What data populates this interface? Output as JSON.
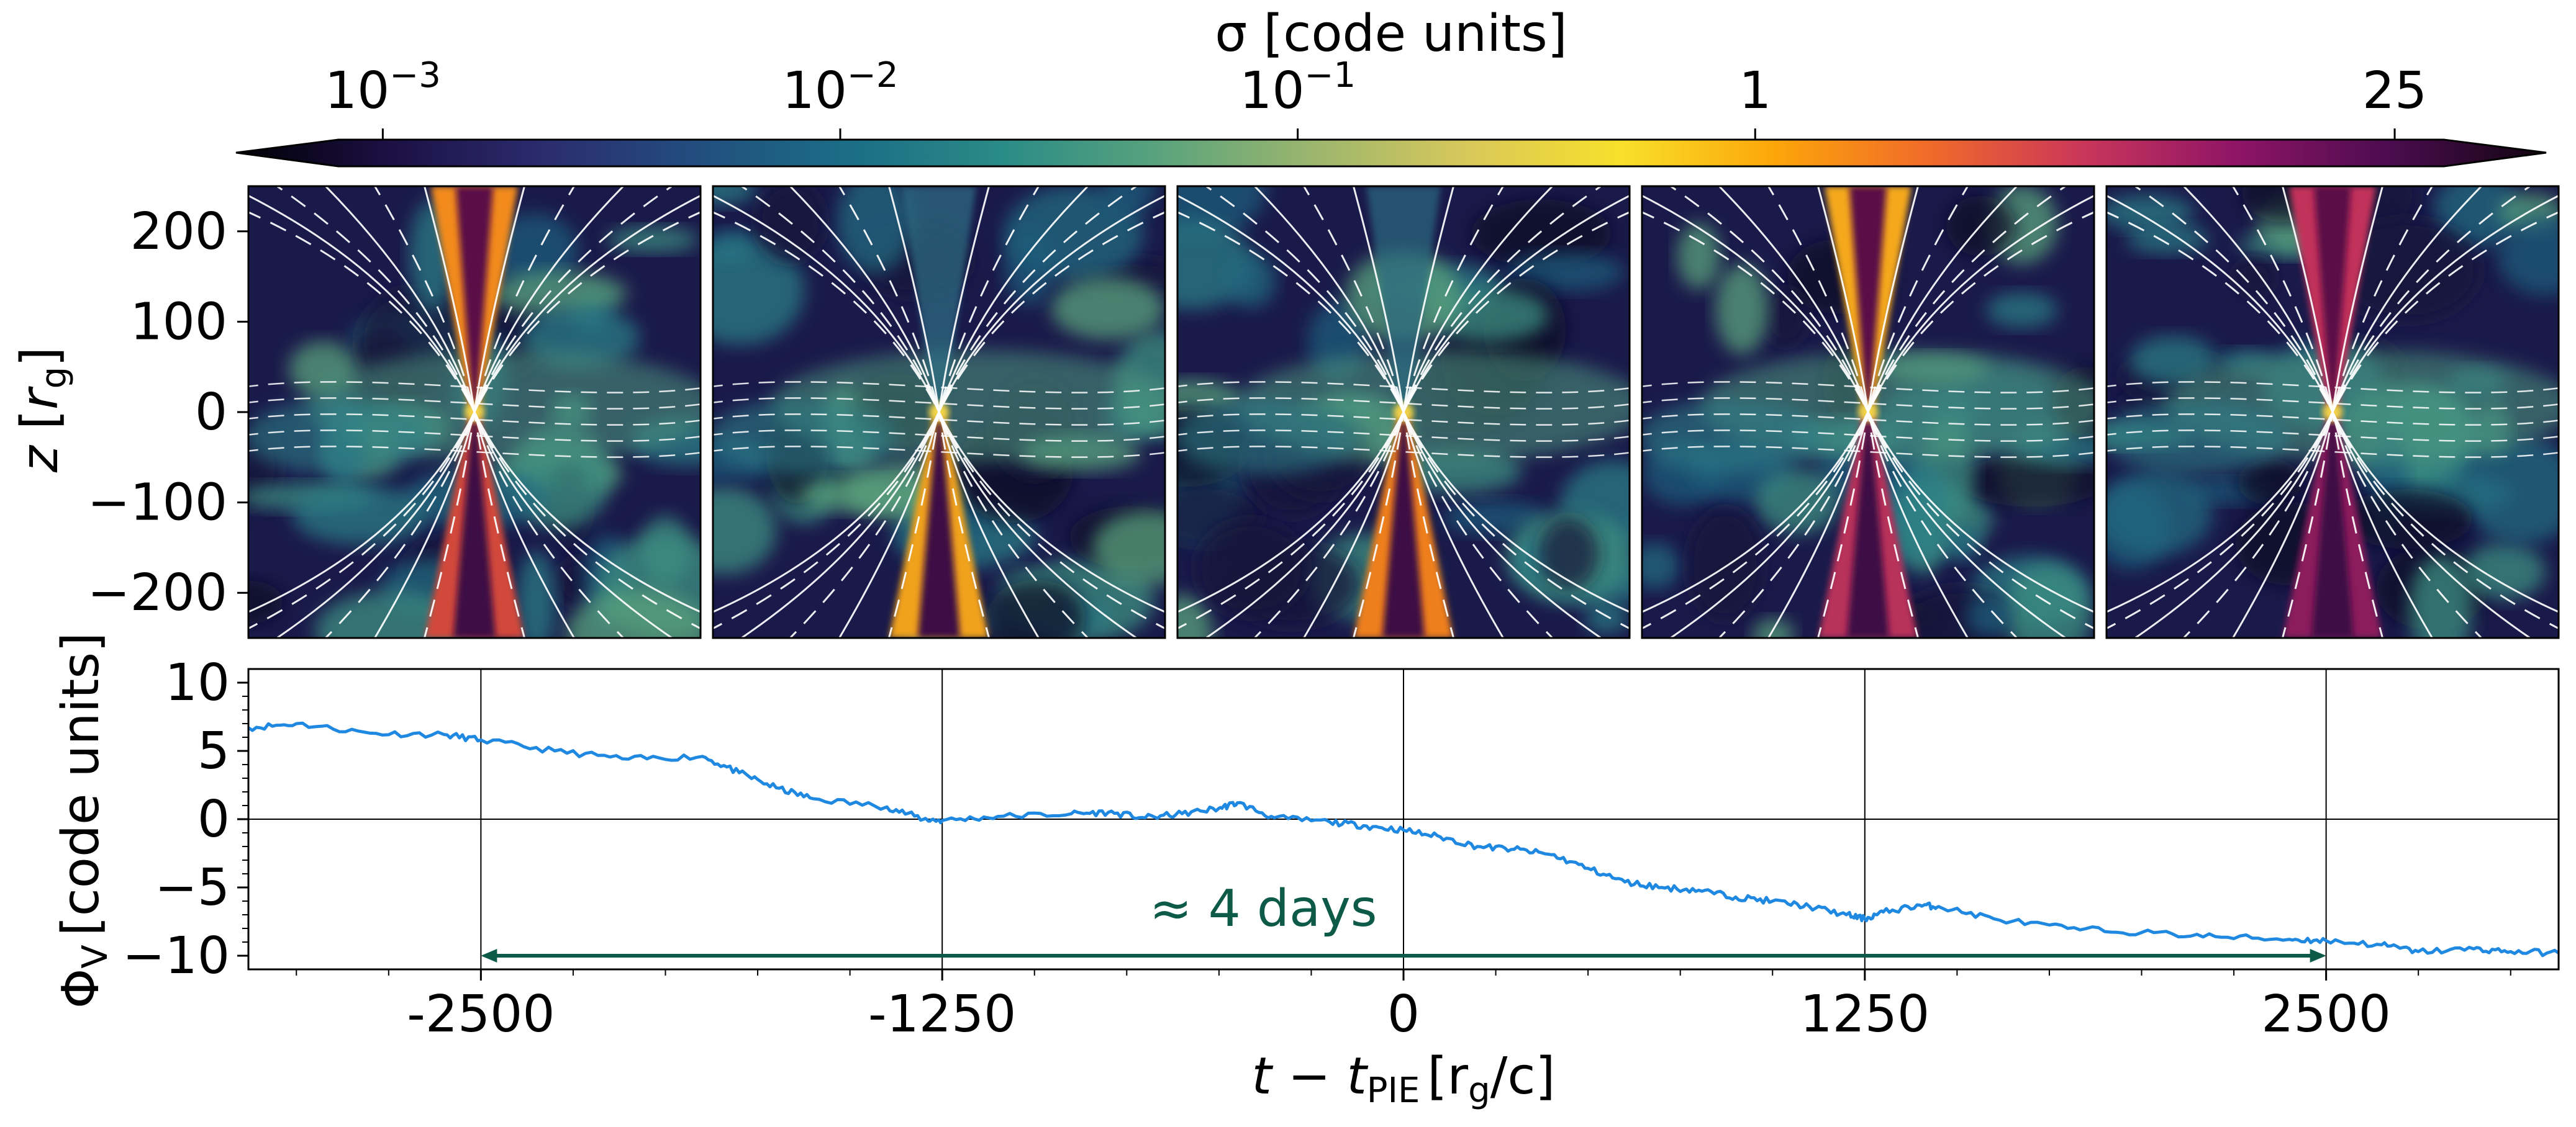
{
  "colorbar": {
    "label": "σ [code units]",
    "scale": "log",
    "ticks": [
      {
        "value": 0.001,
        "base": "10",
        "exp": "−3"
      },
      {
        "value": 0.01,
        "base": "10",
        "exp": "−2"
      },
      {
        "value": 0.1,
        "base": "10",
        "exp": "−1"
      },
      {
        "value": 1,
        "label": "1"
      },
      {
        "value": 25,
        "label": "25"
      }
    ],
    "range": [
      0.0008,
      32
    ],
    "colormap": [
      "#000004",
      "#1c1044",
      "#2b2c6e",
      "#224e7e",
      "#1b6e86",
      "#2b8c86",
      "#5aa37d",
      "#9cb66e",
      "#d8c85a",
      "#f8e02a",
      "#fca50a",
      "#f06a2a",
      "#c9365a",
      "#8e1466",
      "#4a0c4e",
      "#10040f"
    ],
    "extend": "both"
  },
  "snapshots": {
    "ylabel_main": "z",
    "ylabel_var": "r",
    "ylabel_sub": "g",
    "yticks": [
      {
        "value": 200,
        "label": "200"
      },
      {
        "value": 100,
        "label": "100"
      },
      {
        "value": 0,
        "label": "0"
      },
      {
        "value": -100,
        "label": "−100"
      },
      {
        "value": -200,
        "label": "−200"
      }
    ],
    "ylim": [
      -250,
      250
    ],
    "panels": [
      {
        "jet": "north-south",
        "top_color": "#f28a1e",
        "bottom_color": "#d24a3a"
      },
      {
        "jet": "south",
        "top_color": "#2f6f84",
        "bottom_color": "#f1a21a"
      },
      {
        "jet": "south",
        "top_color": "#2c6a80",
        "bottom_color": "#ef7f1e"
      },
      {
        "jet": "north-south",
        "top_color": "#f5a81c",
        "bottom_color": "#b8305a"
      },
      {
        "jet": "north-south",
        "top_color": "#c2305a",
        "bottom_color": "#8c1a5c"
      }
    ]
  },
  "chart_data": {
    "type": "line",
    "ylabel": "Φ",
    "ylabel_sub": "V",
    "ylabel_unit": "[code units]",
    "xlabel": "t − t",
    "xlabel_sub": "PIE",
    "xlabel_unit_open": "[r",
    "xlabel_unit_sub": "g",
    "xlabel_unit_close": "/c]",
    "xlim": [
      -3130,
      3130
    ],
    "ylim": [
      -11,
      11
    ],
    "xticks": [
      {
        "value": -2500,
        "label": "-2500"
      },
      {
        "value": -1250,
        "label": "-1250"
      },
      {
        "value": 0,
        "label": "0"
      },
      {
        "value": 1250,
        "label": "1250"
      },
      {
        "value": 2500,
        "label": "2500"
      }
    ],
    "yticks": [
      {
        "value": 10,
        "label": "10"
      },
      {
        "value": 5,
        "label": "5"
      },
      {
        "value": 0,
        "label": "0"
      },
      {
        "value": -5,
        "label": "−5"
      },
      {
        "value": -10,
        "label": "−10"
      }
    ],
    "grid": true,
    "series": [
      {
        "name": "Φ_V",
        "color": "#1f88e0",
        "x": [
          -3130,
          -3000,
          -2800,
          -2600,
          -2500,
          -2300,
          -2100,
          -1900,
          -1800,
          -1700,
          -1600,
          -1400,
          -1300,
          -1250,
          -1100,
          -900,
          -800,
          -700,
          -600,
          -500,
          -450,
          -350,
          -200,
          -100,
          0,
          100,
          200,
          300,
          400,
          500,
          600,
          700,
          800,
          900,
          1000,
          1100,
          1200,
          1250,
          1300,
          1400,
          1450,
          1600,
          1800,
          2000,
          2200,
          2400,
          2500,
          2650,
          2750,
          2900,
          3000,
          3130
        ],
        "y": [
          6.7,
          7.0,
          6.3,
          6.2,
          5.8,
          5.0,
          4.4,
          4.6,
          3.4,
          2.3,
          1.5,
          0.9,
          0.0,
          -0.1,
          0.2,
          0.4,
          0.5,
          0.1,
          0.4,
          0.8,
          1.2,
          0.1,
          -0.2,
          -0.5,
          -0.8,
          -1.3,
          -2.0,
          -2.2,
          -2.6,
          -3.6,
          -4.6,
          -5.0,
          -5.2,
          -5.7,
          -6.0,
          -6.4,
          -7.0,
          -7.3,
          -6.8,
          -6.3,
          -6.4,
          -7.3,
          -8.0,
          -8.3,
          -8.6,
          -8.8,
          -8.9,
          -9.2,
          -9.7,
          -9.5,
          -9.7,
          -9.8
        ]
      }
    ],
    "annotation": {
      "text": "≈ 4 days",
      "x_start": -2500,
      "x_end": 2500,
      "y": -10,
      "color": "#0d5a48"
    }
  }
}
